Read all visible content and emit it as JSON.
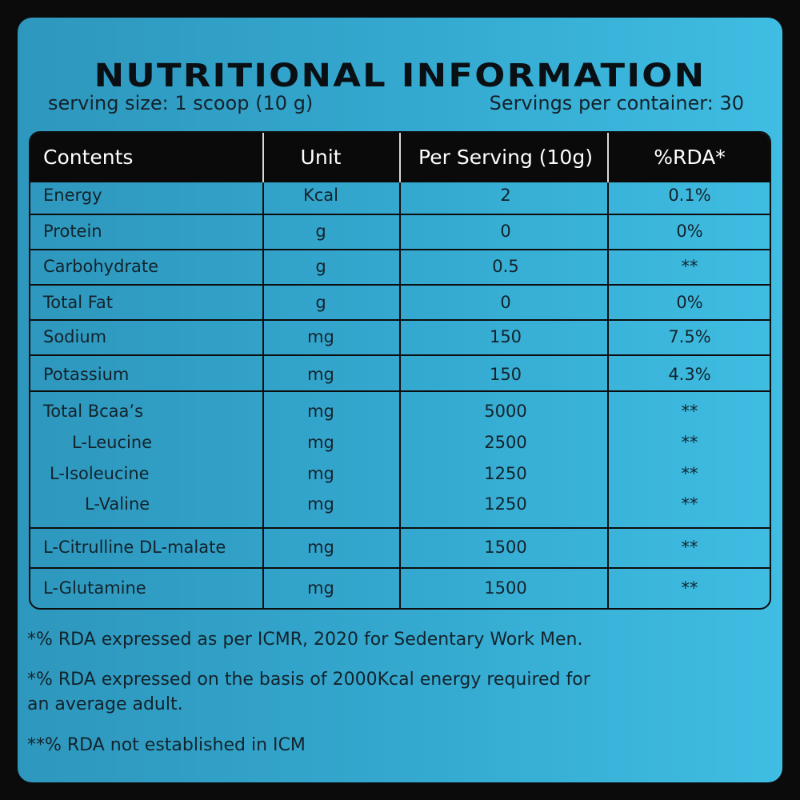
{
  "title": "NUTRITIONAL INFORMATION",
  "serving_size": "serving size: 1 scoop (10 g)",
  "servings_per_container": "Servings per container: 30",
  "table": {
    "headers": [
      "Contents",
      "Unit",
      "Per Serving (10g)",
      "%RDA*"
    ],
    "rows": [
      {
        "name": "Energy",
        "unit": "Kcal",
        "value": "2",
        "rda": "0.1%"
      },
      {
        "name": "Protein",
        "unit": "g",
        "value": "0",
        "rda": "0%"
      },
      {
        "name": "Carbohydrate",
        "unit": "g",
        "value": "0.5",
        "rda": "**"
      },
      {
        "name": "Total Fat",
        "unit": "g",
        "value": "0",
        "rda": "0%"
      },
      {
        "name": "Sodium",
        "unit": "mg",
        "value": "150",
        "rda": "7.5%"
      },
      {
        "name": "Potassium",
        "unit": "mg",
        "value": "150",
        "rda": "4.3%"
      },
      {
        "name": "Total Bcaa’s",
        "unit": "mg",
        "value": "5000",
        "rda": "**"
      },
      {
        "name": "L-Leucine",
        "unit": "mg",
        "value": "2500",
        "rda": "**"
      },
      {
        "name": "L-Isoleucine",
        "unit": "mg",
        "value": "1250",
        "rda": "**"
      },
      {
        "name": "L-Valine",
        "unit": "mg",
        "value": "1250",
        "rda": "**"
      },
      {
        "name": "L-Citrulline DL-malate",
        "unit": "mg",
        "value": "1500",
        "rda": "**"
      },
      {
        "name": "L-Glutamine",
        "unit": "mg",
        "value": "1500",
        "rda": "**"
      }
    ]
  },
  "notes": [
    "*% RDA expressed as per ICMR, 2020 for Sedentary Work Men.",
    "*% RDA expressed on the basis of 2000Kcal energy required for",
    "an average adult.",
    "**% RDA not established in ICM"
  ]
}
